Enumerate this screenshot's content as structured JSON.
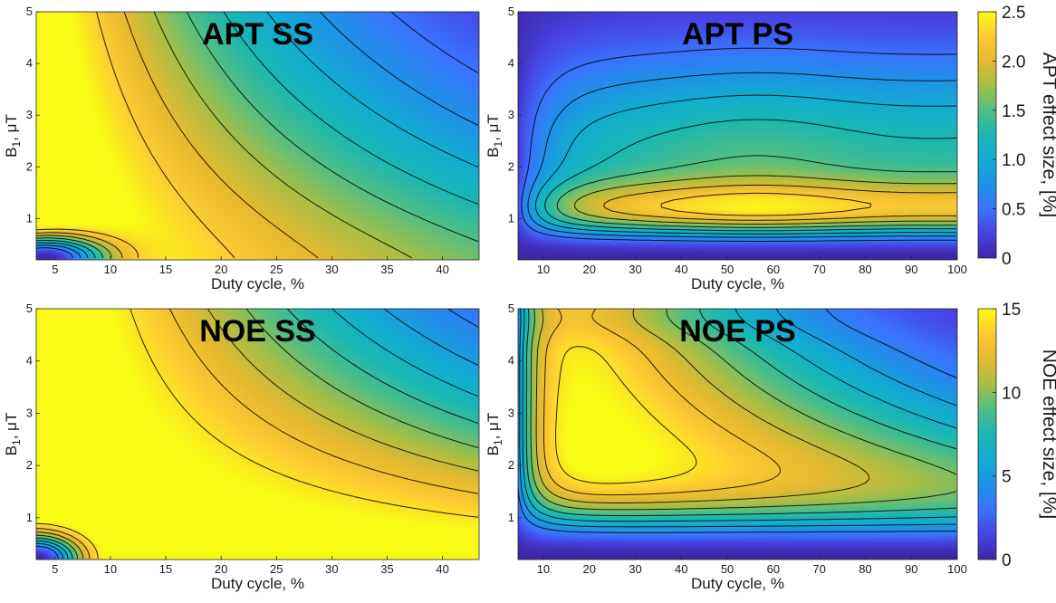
{
  "figure": {
    "colormap": [
      "#3e26a8",
      "#4743e2",
      "#3a72fe",
      "#1f92e6",
      "#13acd2",
      "#1ab7b2",
      "#52be83",
      "#a5be47",
      "#e4b930",
      "#fccb33",
      "#f9fb15"
    ]
  },
  "chart_data": [
    {
      "type": "heatmap",
      "title": "APT SS",
      "xlabel": "Duty cycle, %",
      "ylabel_main": "B",
      "ylabel_sub": "1",
      "ylabel_rest": ", μT",
      "xlim": [
        3.3,
        43.3
      ],
      "ylim": [
        0.2,
        5.0
      ],
      "xticks": [
        5,
        10,
        15,
        20,
        25,
        30,
        35,
        40
      ],
      "yticks": [
        1,
        2,
        3,
        4,
        5
      ],
      "peak": {
        "x": 22,
        "y": 1.6
      },
      "colorbar": "APT"
    },
    {
      "type": "heatmap",
      "title": "APT PS",
      "xlabel": "Duty cycle, %",
      "ylabel_main": "B",
      "ylabel_sub": "1",
      "ylabel_rest": ", μT",
      "xlim": [
        4.5,
        100
      ],
      "ylim": [
        0.2,
        5.0
      ],
      "xticks": [
        10,
        20,
        30,
        40,
        50,
        60,
        70,
        80,
        90,
        100
      ],
      "yticks": [
        1,
        2,
        3,
        4,
        5
      ],
      "peak": {
        "x": 57,
        "y": 1.15
      },
      "colorbar": "APT"
    },
    {
      "type": "heatmap",
      "title": "NOE SS",
      "xlabel": "Duty cycle, %",
      "ylabel_main": "B",
      "ylabel_sub": "1",
      "ylabel_rest": ", μT",
      "xlim": [
        3.3,
        43.3
      ],
      "ylim": [
        0.2,
        5.0
      ],
      "xticks": [
        5,
        10,
        15,
        20,
        25,
        30,
        35,
        40
      ],
      "yticks": [
        1,
        2,
        3,
        4,
        5
      ],
      "peak": {
        "x": 18,
        "y": 3.0
      },
      "colorbar": "NOE"
    },
    {
      "type": "heatmap",
      "title": "NOE PS",
      "xlabel": "Duty cycle, %",
      "ylabel_main": "B",
      "ylabel_sub": "1",
      "ylabel_rest": ", μT",
      "xlim": [
        4.5,
        100
      ],
      "ylim": [
        0.2,
        5.0
      ],
      "xticks": [
        10,
        20,
        30,
        40,
        50,
        60,
        70,
        80,
        90,
        100
      ],
      "yticks": [
        1,
        2,
        3,
        4,
        5
      ],
      "peak": {
        "x": 45,
        "y": 2.2
      },
      "colorbar": "NOE"
    }
  ],
  "colorbars": [
    {
      "id": "APT",
      "label": "APT effect size, [%]",
      "min": 0,
      "max": 2.5,
      "ticks": [
        0,
        0.5,
        1.0,
        1.5,
        2.0,
        2.5
      ],
      "tick_labels": [
        "0",
        "0.5",
        "1.0",
        "1.5",
        "2.0",
        "2.5"
      ]
    },
    {
      "id": "NOE",
      "label": "NOE effect size, [%]",
      "min": 0,
      "max": 15,
      "ticks": [
        0,
        5,
        10,
        15
      ],
      "tick_labels": [
        "0",
        "5",
        "10",
        "15"
      ]
    }
  ]
}
